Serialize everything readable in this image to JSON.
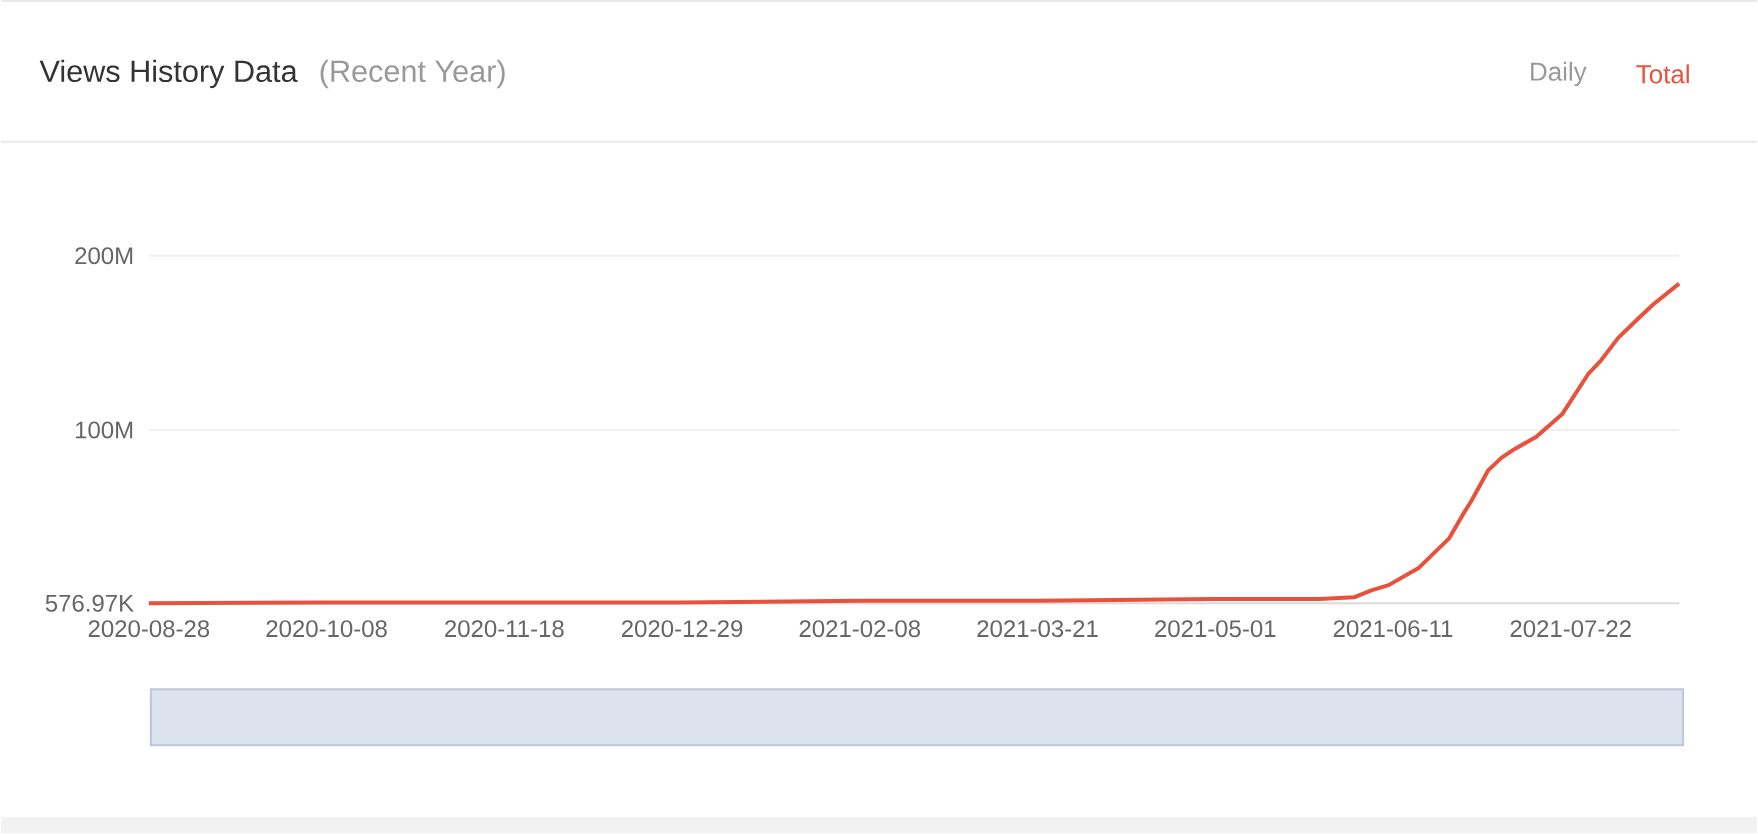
{
  "chart_data": {
    "type": "line",
    "title": "Views History Data",
    "subtitle": "(Recent Year)",
    "annotations": [
      "Daily",
      "Total"
    ],
    "x": [
      "2020-08-28",
      "2020-10-08",
      "2020-11-18",
      "2020-12-29",
      "2021-02-08",
      "2021-03-21",
      "2021-05-01",
      "2021-05-25",
      "2021-06-02",
      "2021-06-06",
      "2021-06-10",
      "2021-06-17",
      "2021-06-24",
      "2021-06-27",
      "2021-06-29",
      "2021-07-03",
      "2021-07-06",
      "2021-07-09",
      "2021-07-14",
      "2021-07-20",
      "2021-07-26",
      "2021-07-29",
      "2021-08-02",
      "2021-08-07",
      "2021-08-10",
      "2021-08-16"
    ],
    "values": [
      576970,
      1000000,
      1000000,
      1000000,
      2000000,
      2000000,
      3000000,
      3000000,
      4000000,
      8000000,
      11000000,
      21000000,
      38000000,
      51000000,
      59000000,
      77000000,
      84000000,
      89000000,
      96000000,
      109000000,
      132000000,
      140000000,
      153000000,
      165000000,
      172000000,
      184000000
    ],
    "color": "#e8513c",
    "xlim": [
      "2020-08-28",
      "2021-08-16"
    ],
    "xticks": [
      "2020-08-28",
      "2020-10-08",
      "2020-11-18",
      "2020-12-29",
      "2021-02-08",
      "2021-03-21",
      "2021-05-01",
      "2021-06-11",
      "2021-07-22"
    ],
    "ylim": [
      576970,
      200000000
    ],
    "yticks": [
      {
        "value": 576970,
        "label": "576.97K"
      },
      {
        "value": 100000000,
        "label": "100M"
      },
      {
        "value": 200000000,
        "label": "200M"
      }
    ],
    "grid": "y"
  }
}
